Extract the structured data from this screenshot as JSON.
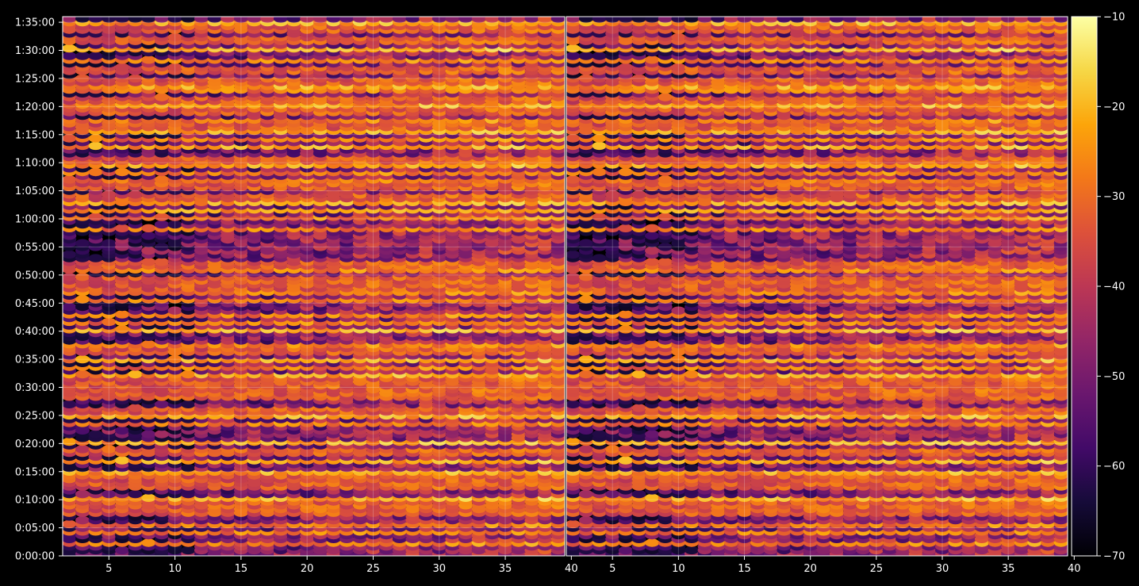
{
  "chart_data": {
    "type": "heatmap",
    "colormap": "inferno",
    "background": "#000000",
    "panels": [
      {
        "name": "left",
        "x_range": [
          1.5,
          39.5
        ],
        "y_range_seconds": [
          0,
          5760
        ],
        "xticks": [
          5,
          10,
          15,
          20,
          25,
          30,
          35,
          40
        ],
        "xtick_labels": [
          "5",
          "10",
          "15",
          "20",
          "25",
          "30",
          "35",
          "40"
        ]
      },
      {
        "name": "right",
        "x_range": [
          1.5,
          39.5
        ],
        "y_range_seconds": [
          0,
          5760
        ],
        "xticks": [
          5,
          10,
          15,
          20,
          25,
          30,
          35,
          40
        ],
        "xtick_labels": [
          "5",
          "10",
          "15",
          "20",
          "25",
          "30",
          "35",
          "40"
        ]
      }
    ],
    "y_axis": {
      "ticks_seconds": [
        0,
        300,
        600,
        900,
        1200,
        1500,
        1800,
        2100,
        2400,
        2700,
        3000,
        3300,
        3600,
        3900,
        4200,
        4500,
        4800,
        5100,
        5400,
        5700
      ],
      "tick_labels": [
        "0:00:00",
        "0:05:00",
        "0:10:00",
        "0:15:00",
        "0:20:00",
        "0:25:00",
        "0:30:00",
        "0:35:00",
        "0:40:00",
        "0:45:00",
        "0:50:00",
        "0:55:00",
        "1:00:00",
        "1:05:00",
        "1:10:00",
        "1:15:00",
        "1:20:00",
        "1:25:00",
        "1:30:00",
        "1:35:00"
      ]
    },
    "colorbar": {
      "range": [
        -70,
        -10
      ],
      "ticks": [
        -70,
        -60,
        -50,
        -40,
        -30,
        -20,
        -10
      ],
      "tick_labels": [
        "−70",
        "−60",
        "−50",
        "−40",
        "−30",
        "−20",
        "−10"
      ]
    },
    "grid": true,
    "strong_rows_seconds": [
      150,
      250,
      350,
      480,
      560,
      620,
      760,
      840,
      900,
      1020,
      1120,
      1220,
      1430,
      1500,
      1560,
      1720,
      1800,
      1880,
      1940,
      2010,
      2100,
      2200,
      2270,
      2420,
      2490,
      2570,
      2730,
      2810,
      2880,
      2960,
      3050,
      3120,
      3510,
      3630,
      3700,
      3780,
      3840,
      3960,
      4030,
      4110,
      4180,
      4240,
      4380,
      4470,
      4540,
      4600,
      4670,
      4760,
      4820,
      4880,
      4970,
      5020,
      5080,
      5200,
      5310,
      5420,
      5520,
      5640,
      5700
    ]
  }
}
